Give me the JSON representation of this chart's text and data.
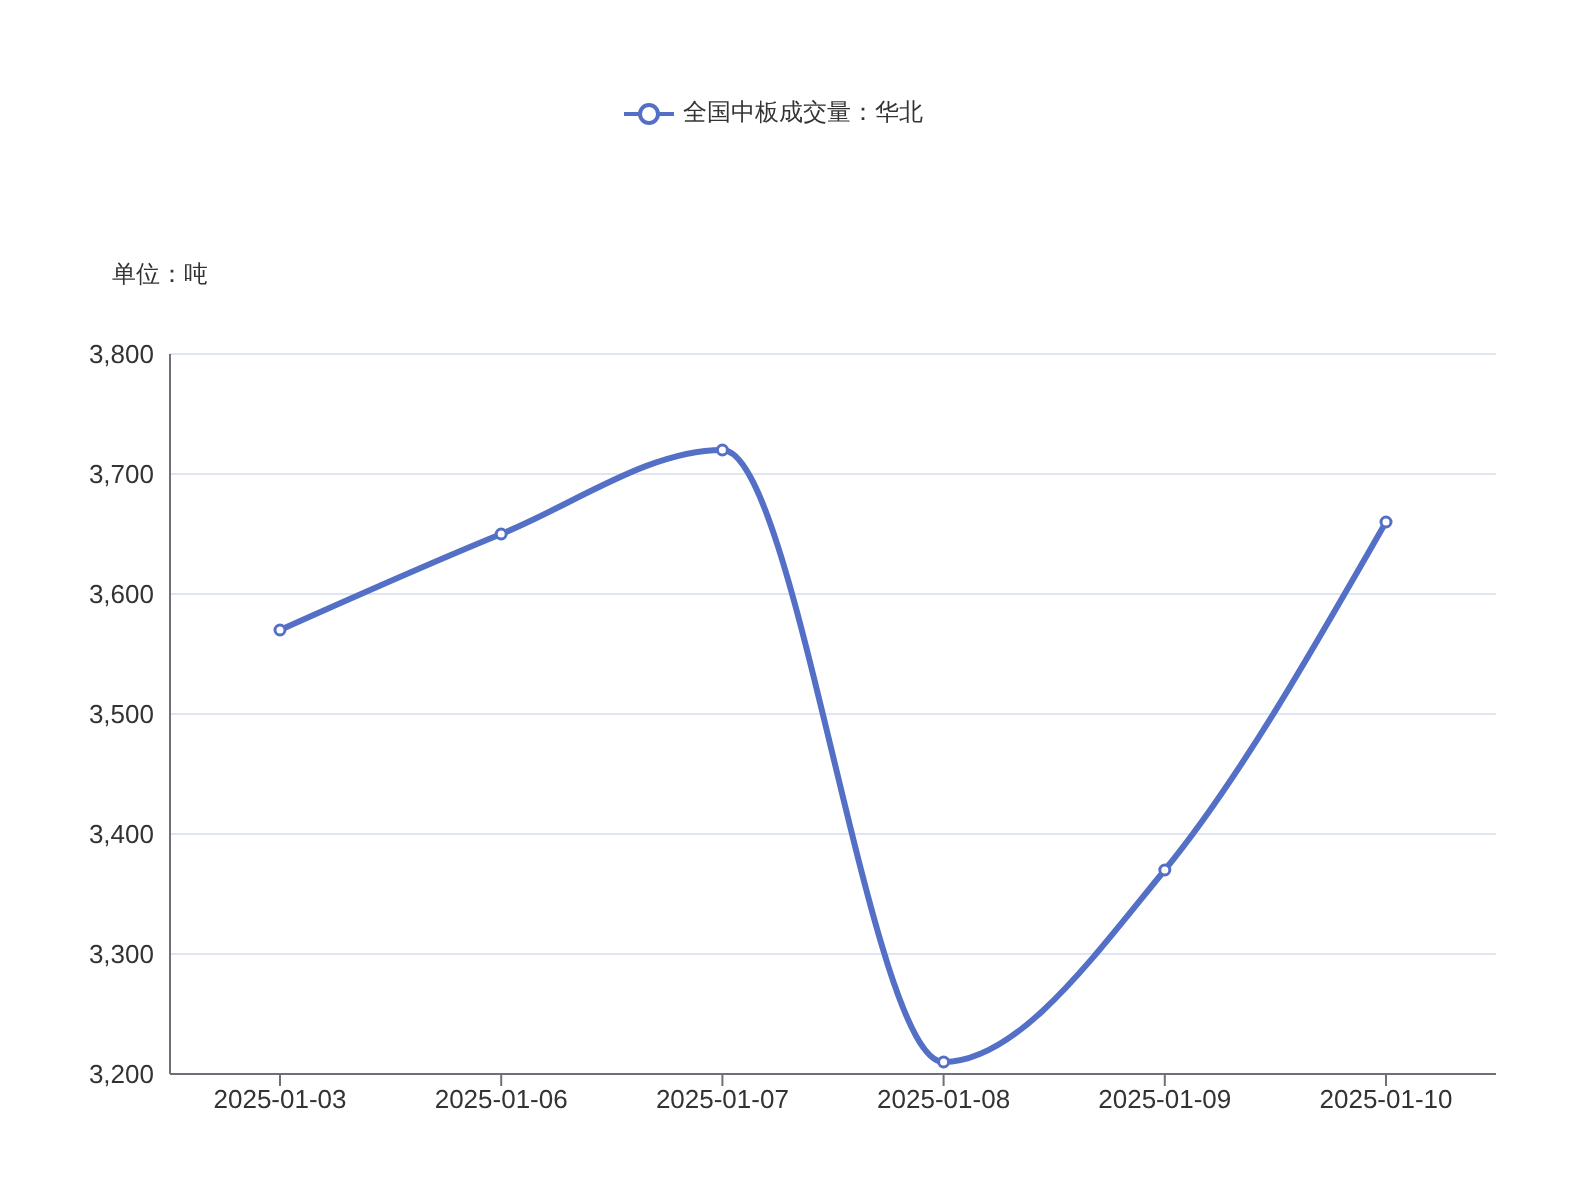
{
  "chart_data": {
    "type": "line",
    "ylabel": "单位：吨",
    "categories": [
      "2025-01-03",
      "2025-01-06",
      "2025-01-07",
      "2025-01-08",
      "2025-01-09",
      "2025-01-10"
    ],
    "series": [
      {
        "name": "全国中板成交量：华北",
        "color": "#5470c6",
        "values": [
          3570,
          3650,
          3720,
          3210,
          3370,
          3660
        ]
      }
    ],
    "ylim": [
      3200,
      3800
    ],
    "yticks": [
      {
        "value": 3200,
        "label": "3,200"
      },
      {
        "value": 3300,
        "label": "3,300"
      },
      {
        "value": 3400,
        "label": "3,400"
      },
      {
        "value": 3500,
        "label": "3,500"
      },
      {
        "value": 3600,
        "label": "3,600"
      },
      {
        "value": 3700,
        "label": "3,700"
      },
      {
        "value": 3800,
        "label": "3,800"
      }
    ],
    "grid": "y",
    "legend": "top",
    "marker": "circle",
    "line_style": "solid"
  }
}
